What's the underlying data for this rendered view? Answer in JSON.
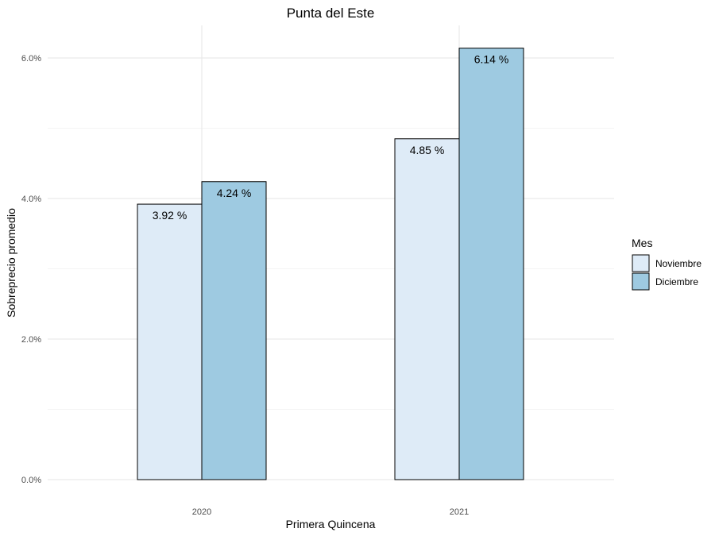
{
  "chart_data": {
    "type": "bar",
    "title": "Punta del Este",
    "xlabel": "Primera Quincena",
    "ylabel": "Sobreprecio promedio",
    "categories": [
      "2020",
      "2021"
    ],
    "series": [
      {
        "name": "Noviembre",
        "color": "#deebf7",
        "values": [
          3.92,
          4.85
        ],
        "labels": [
          "3.92 %",
          "4.85 %"
        ]
      },
      {
        "name": "Diciembre",
        "color": "#9ecae1",
        "values": [
          4.24,
          6.14
        ],
        "labels": [
          "4.24 %",
          "6.14 %"
        ]
      }
    ],
    "ylim": [
      0,
      6.6
    ],
    "yticks": [
      0,
      2,
      4,
      6
    ],
    "ytick_labels": [
      "0.0%",
      "2.0%",
      "4.0%",
      "6.0%"
    ],
    "grid": true,
    "legend": {
      "title": "Mes",
      "position": "right"
    }
  }
}
